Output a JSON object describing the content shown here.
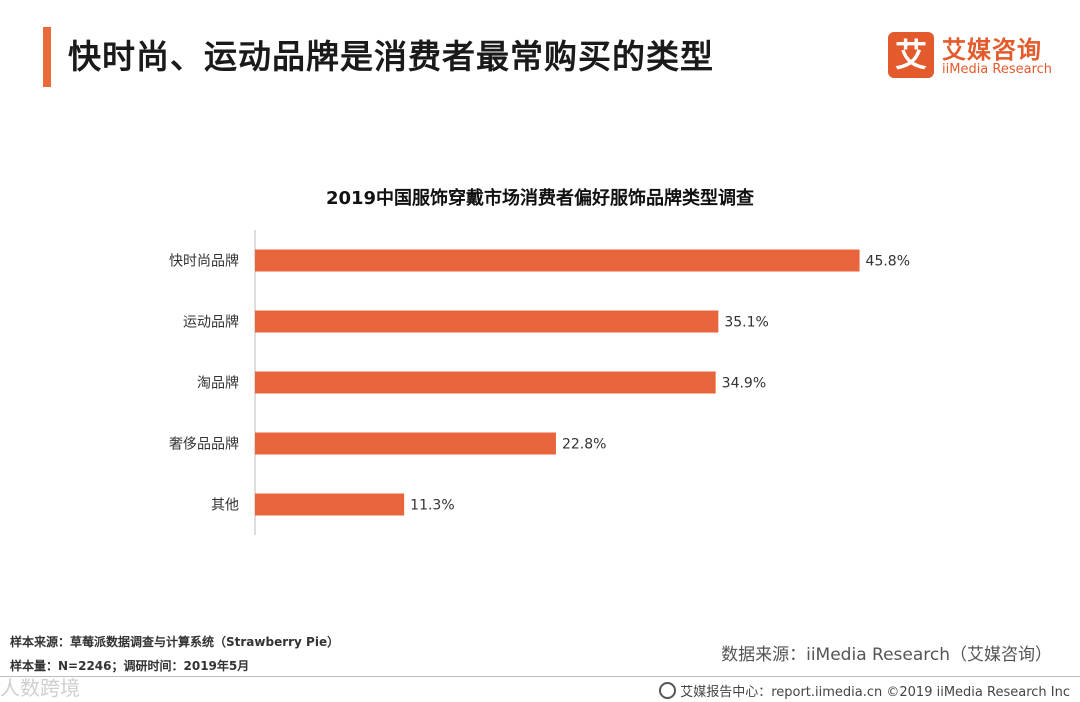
{
  "header": {
    "title": "快时尚、运动品牌是消费者最常购买的类型",
    "accent_color": "#ea6a3c"
  },
  "logo": {
    "mark": "艾",
    "name_cn": "艾媒咨询",
    "name_en": "iiMedia Research",
    "color": "#e35b2c"
  },
  "chart_data": {
    "type": "bar",
    "orientation": "horizontal",
    "title": "2019中国服饰穿戴市场消费者偏好服饰品牌类型调查",
    "categories": [
      "快时尚品牌",
      "运动品牌",
      "淘品牌",
      "奢侈品品牌",
      "其他"
    ],
    "values": [
      45.8,
      35.1,
      34.9,
      22.8,
      11.3
    ],
    "value_labels": [
      "45.8%",
      "35.1%",
      "34.9%",
      "22.8%",
      "11.3%"
    ],
    "unit": "%",
    "xlim": [
      0,
      50
    ],
    "bar_color": "#e8643a",
    "grid": false
  },
  "footer": {
    "sample_source": "样本来源：草莓派数据调查与计算系统（Strawberry  Pie）",
    "sample_size": "样本量：N=2246；调研时间：2019年5月",
    "data_source": "数据来源：iiMedia Research（艾媒咨询）",
    "copyright": "艾媒报告中心：report.iimedia.cn  ©2019  iiMedia Research  Inc",
    "watermark": "人数跨境"
  }
}
